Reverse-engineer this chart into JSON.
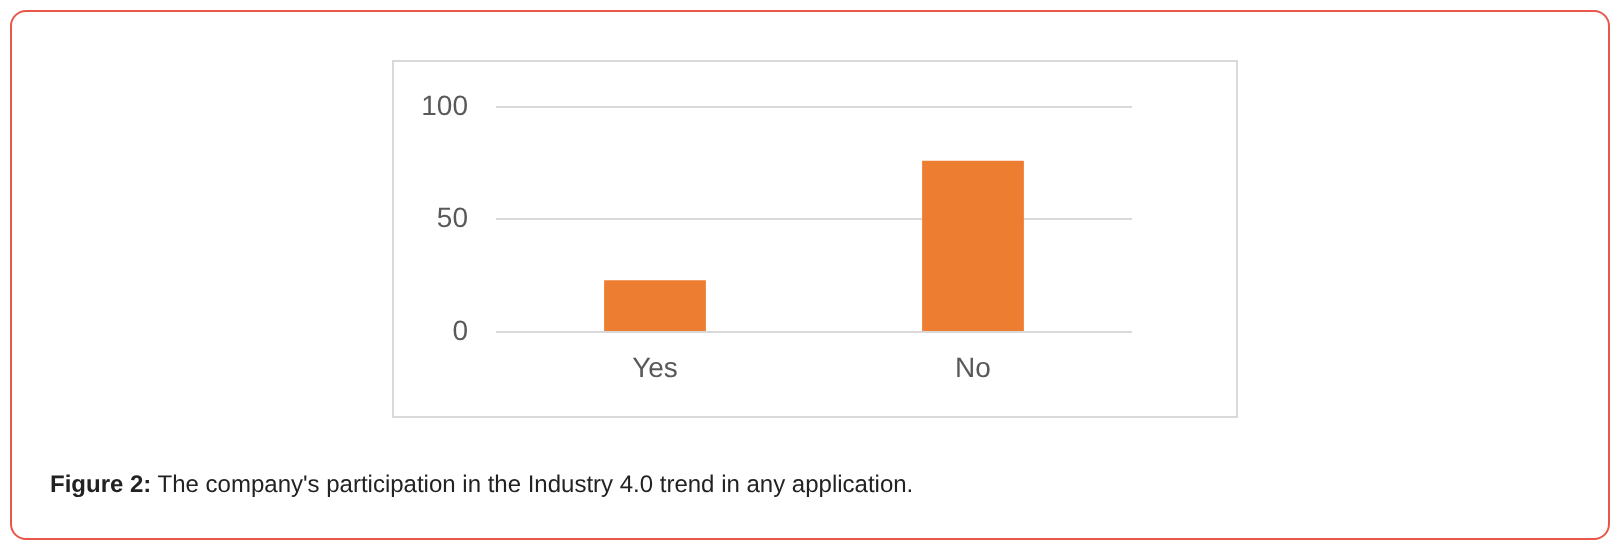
{
  "chart_data": {
    "type": "bar",
    "categories": [
      "Yes",
      "No"
    ],
    "values": [
      23,
      76
    ],
    "color": "#ed7d31",
    "ylim": [
      0,
      100
    ],
    "yticks": [
      0,
      50,
      100
    ],
    "grid": "y",
    "legend": false,
    "annotations": [
      "Figure 2: The company's participation in the Industry 4.0 trend in any application."
    ]
  }
}
